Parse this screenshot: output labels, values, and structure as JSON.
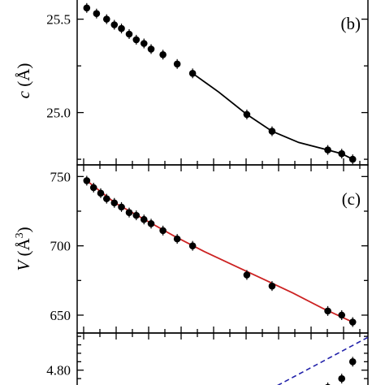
{
  "chart_data": [
    {
      "type": "scatter",
      "panel_label": "(b)",
      "ylabel": {
        "symbol": "c",
        "unit": "(Å)"
      },
      "ylim": [
        24.72,
        25.62
      ],
      "xlim": [
        0,
        1
      ],
      "yticks": [
        25.0,
        25.5
      ],
      "ytick_labels": [
        "25.0",
        "25.5"
      ],
      "series": [
        {
          "x": [
            0.005,
            0.038,
            0.072,
            0.098,
            0.122,
            0.148,
            0.172,
            0.198,
            0.222,
            0.262,
            0.31,
            0.362,
            0.545,
            0.63,
            0.818,
            0.865,
            0.902
          ],
          "y": [
            25.56,
            25.53,
            25.5,
            25.47,
            25.45,
            25.42,
            25.39,
            25.37,
            25.34,
            25.31,
            25.26,
            25.21,
            24.99,
            24.9,
            24.8,
            24.78,
            24.75
          ]
        }
      ],
      "fit": {
        "x": [
          0.362,
          0.45,
          0.545,
          0.63,
          0.72,
          0.818,
          0.865,
          0.902
        ],
        "y": [
          25.21,
          25.11,
          24.99,
          24.9,
          24.84,
          24.8,
          24.78,
          24.75
        ]
      }
    },
    {
      "type": "scatter",
      "panel_label": "(c)",
      "ylabel": {
        "symbol": "V",
        "unit": "(Å",
        "exponent": "3",
        "close": ")"
      },
      "ylim": [
        637.1,
        758.4
      ],
      "xlim": [
        0,
        1
      ],
      "yticks": [
        650,
        700,
        750
      ],
      "ytick_labels": [
        "650",
        "700",
        "750"
      ],
      "series": [
        {
          "x": [
            0.005,
            0.028,
            0.052,
            0.072,
            0.098,
            0.122,
            0.148,
            0.172,
            0.198,
            0.222,
            0.262,
            0.31,
            0.362,
            0.545,
            0.63,
            0.818,
            0.865,
            0.902
          ],
          "y": [
            747,
            742,
            738,
            734,
            731,
            728,
            724,
            722,
            719,
            716,
            711,
            705,
            700,
            679,
            671,
            653,
            650,
            645
          ]
        }
      ],
      "fit": {
        "x": [
          0.005,
          0.1,
          0.2,
          0.3,
          0.4,
          0.5,
          0.6,
          0.7,
          0.8,
          0.902
        ],
        "y": [
          747,
          731,
          719,
          707,
          696,
          686,
          676,
          666,
          655,
          645
        ]
      },
      "fit_color": "#cc2222"
    },
    {
      "type": "scatter",
      "ytick_labels": [
        "4.80"
      ],
      "yticks": [
        4.8
      ],
      "ylim": [
        4.732,
        4.91
      ],
      "xlim": [
        0,
        1
      ],
      "series": [
        {
          "x": [
            0.818,
            0.865,
            0.902
          ],
          "y": [
            4.749,
            4.775,
            4.825
          ]
        }
      ],
      "dashed_line": {
        "x": [
          0.6,
          0.97
        ],
        "y": [
          4.732,
          4.905
        ]
      },
      "dashed_color": "#2222aa"
    }
  ]
}
